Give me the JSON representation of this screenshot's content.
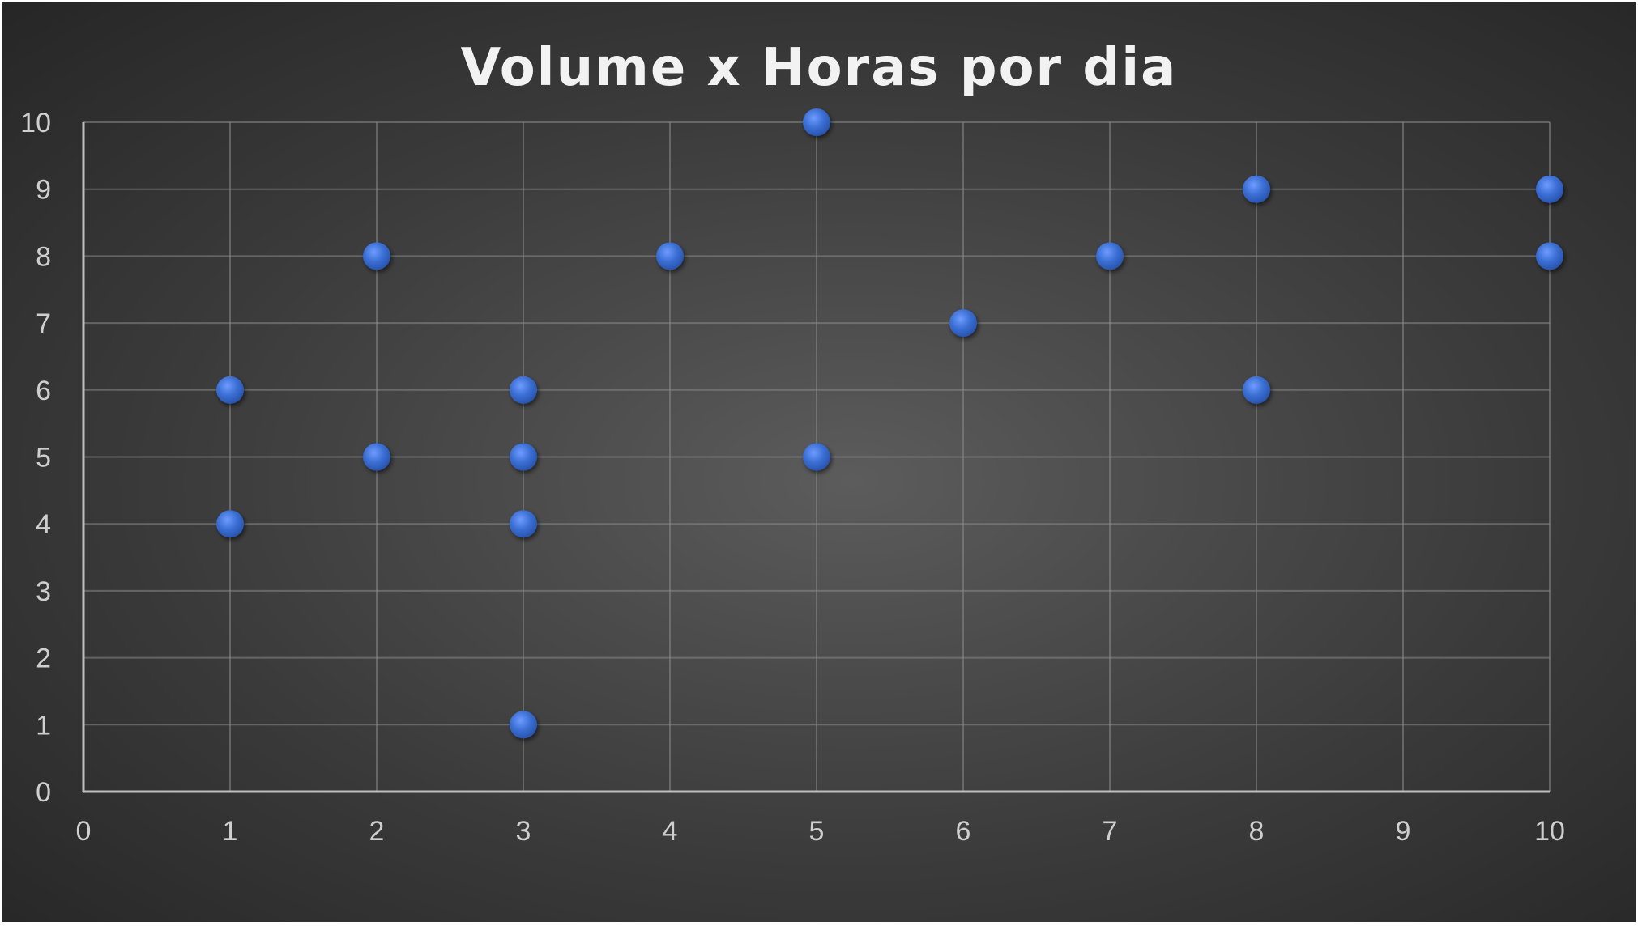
{
  "chart_data": {
    "type": "scatter",
    "title": "Volume x Horas por dia",
    "xlabel": "",
    "ylabel": "",
    "xlim": [
      0,
      10
    ],
    "ylim": [
      0,
      10
    ],
    "x_ticks": [
      0,
      1,
      2,
      3,
      4,
      5,
      6,
      7,
      8,
      9,
      10
    ],
    "y_ticks": [
      0,
      1,
      2,
      3,
      4,
      5,
      6,
      7,
      8,
      9,
      10
    ],
    "grid": true,
    "legend": "none",
    "series": [
      {
        "color": "#3b6fd4",
        "points": [
          {
            "x": 1,
            "y": 6
          },
          {
            "x": 1,
            "y": 4
          },
          {
            "x": 2,
            "y": 8
          },
          {
            "x": 2,
            "y": 5
          },
          {
            "x": 3,
            "y": 6
          },
          {
            "x": 3,
            "y": 5
          },
          {
            "x": 3,
            "y": 4
          },
          {
            "x": 3,
            "y": 1
          },
          {
            "x": 4,
            "y": 8
          },
          {
            "x": 5,
            "y": 10
          },
          {
            "x": 5,
            "y": 5
          },
          {
            "x": 6,
            "y": 7
          },
          {
            "x": 7,
            "y": 8
          },
          {
            "x": 8,
            "y": 9
          },
          {
            "x": 8,
            "y": 6
          },
          {
            "x": 10,
            "y": 9
          },
          {
            "x": 10,
            "y": 8
          }
        ]
      }
    ]
  },
  "colors": {
    "marker": "#3b6fd4",
    "background_center": "#5c5c5c",
    "background_edge": "#262626",
    "text": "#cfcfcf"
  }
}
